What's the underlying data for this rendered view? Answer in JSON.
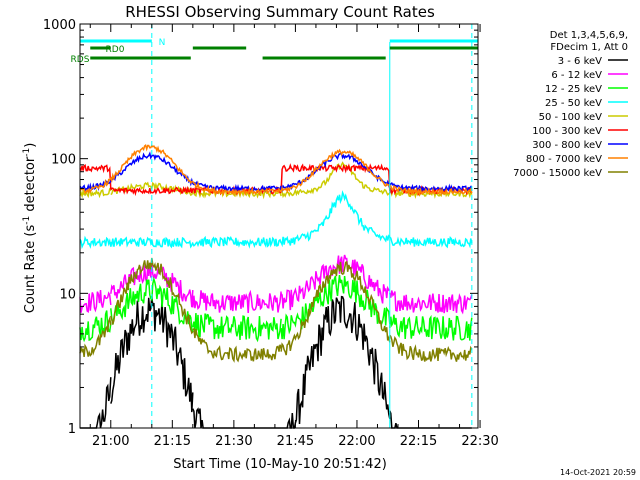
{
  "chart_data": {
    "type": "line",
    "title": "RHESSI Observing Summary Count Rates",
    "xlabel": "Start Time (10-May-10 20:51:42)",
    "ylabel_main": "Count Rate (s",
    "ylabel_sup1": "-1",
    "ylabel_mid": " detector",
    "ylabel_sup2": "-1",
    "ylabel_end": ")",
    "y_scale": "log",
    "ylim": [
      1,
      1000
    ],
    "xlim_minutes": [
      -7.5,
      89.5
    ],
    "x_tick_minutes": [
      0,
      15,
      30,
      45,
      60,
      75,
      90
    ],
    "x_tick_labels": [
      "21:00",
      "21:15",
      "21:30",
      "21:45",
      "22:00",
      "22:15",
      "22:30"
    ],
    "y_tick_values": [
      1,
      10,
      100,
      1000
    ],
    "y_tick_labels": [
      "1",
      "10",
      "100",
      "1000"
    ],
    "legend_header": [
      "Det 1,3,4,5,6,9,",
      "FDecim 1, Att 0"
    ],
    "legend_placement": "right",
    "series": [
      {
        "name": "3 - 6 keV",
        "color": "#000000"
      },
      {
        "name": "6 - 12 keV",
        "color": "#ff00ff"
      },
      {
        "name": "12 - 25 keV",
        "color": "#00ff00"
      },
      {
        "name": "25 - 50 keV",
        "color": "#00ffff"
      },
      {
        "name": "50 - 100 keV",
        "color": "#cccc00"
      },
      {
        "name": "100 - 300 keV",
        "color": "#ff0000"
      },
      {
        "name": "300 - 800 keV",
        "color": "#0000ff"
      },
      {
        "name": "800 - 7000 keV",
        "color": "#ff8000"
      },
      {
        "name": "7000 - 15000 keV",
        "color": "#808000"
      }
    ],
    "flags": [
      {
        "label": "N",
        "color": "#00ffff",
        "segments": [
          [
            -7.5,
            10
          ],
          [
            68,
            89.5
          ]
        ]
      },
      {
        "label": "RD0",
        "color": "#008000",
        "segments": [
          [
            -5,
            0
          ],
          [
            20,
            33
          ],
          [
            68,
            89.5
          ]
        ]
      },
      {
        "label": "RDS",
        "color": "#008000",
        "segments": [
          [
            -5,
            19.5
          ],
          [
            37,
            67
          ]
        ]
      }
    ],
    "vlines_dashed": [
      10,
      88
    ],
    "vlines_solid": [
      -7.5,
      68
    ],
    "footer_date": "14-Oct-2021 20:59"
  }
}
